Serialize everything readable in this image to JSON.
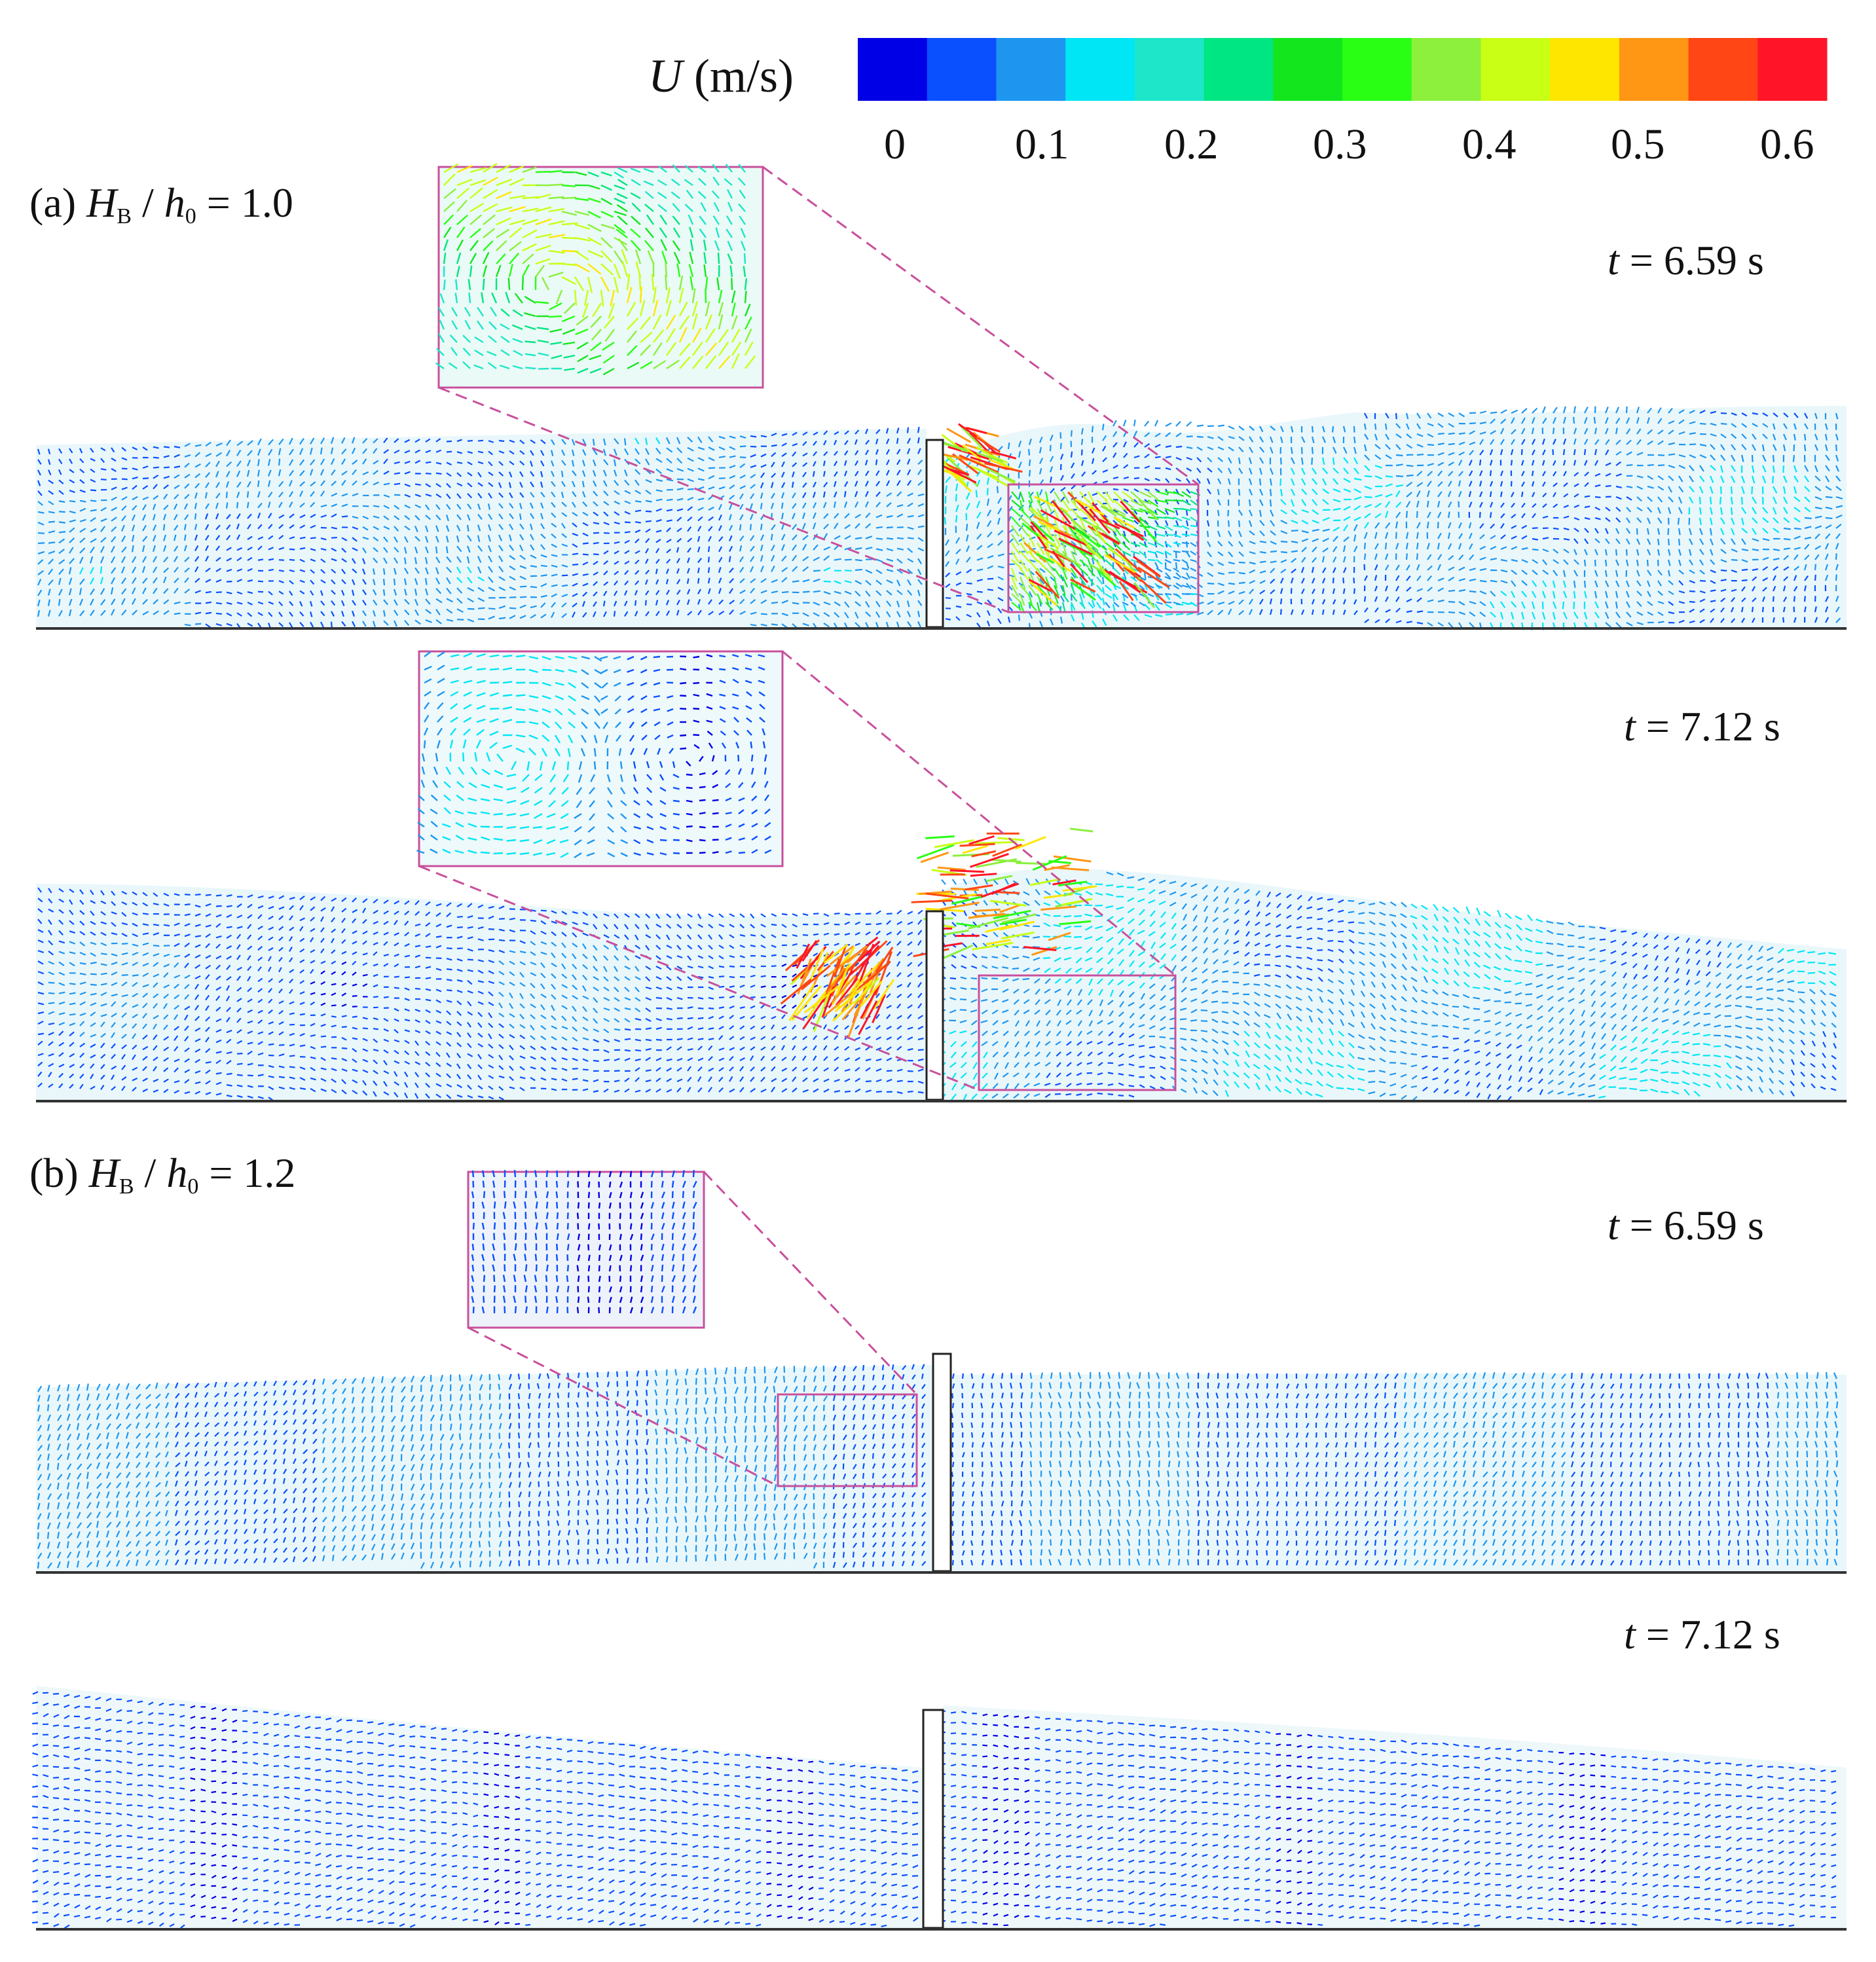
{
  "colorbar": {
    "var": "U",
    "unit": " (m/s)",
    "min": 0,
    "max": 0.6,
    "ticks": [
      "0",
      "0.1",
      "0.2",
      "0.3",
      "0.4",
      "0.5",
      "0.6"
    ],
    "colors": [
      "#0000e6",
      "#0a50ff",
      "#1e96f0",
      "#00e6f5",
      "#1ee6c8",
      "#00e682",
      "#14e61e",
      "#28ff14",
      "#8cf03c",
      "#c8ff14",
      "#ffe600",
      "#ff9614",
      "#ff4614",
      "#ff1428"
    ]
  },
  "groups": [
    {
      "label": "(a)",
      "param_main": "H",
      "param_sub": "B",
      "over_main": "h",
      "over_sub": "0",
      "value": "= 1.0"
    },
    {
      "label": "(b)",
      "param_main": "H",
      "param_sub": "B",
      "over_main": "h",
      "over_sub": "0",
      "value": "= 1.2"
    }
  ],
  "panels": [
    {
      "group": "(a)",
      "t_var": "t",
      "t_value": " = 6.59 s"
    },
    {
      "group": "(a)",
      "t_var": "t",
      "t_value": " = 7.12 s"
    },
    {
      "group": "(b)",
      "t_var": "t",
      "t_value": " = 6.59 s"
    },
    {
      "group": "(b)",
      "t_var": "t",
      "t_value": " = 7.12 s"
    }
  ]
}
